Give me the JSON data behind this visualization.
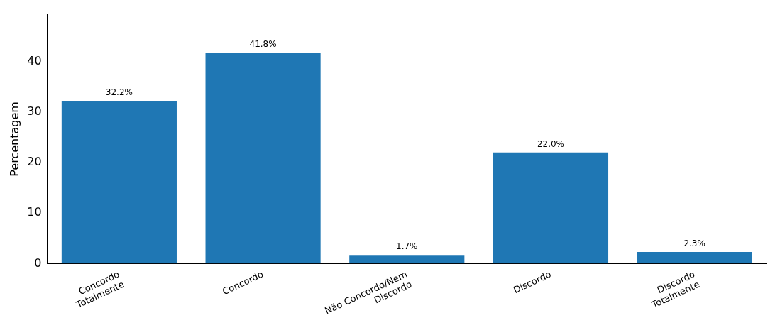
{
  "chart_data": {
    "type": "bar",
    "ylabel": "Percentagem",
    "categories": [
      "Concordo\nTotalmente",
      "Concordo",
      "Não Concordo/Nem\nDiscordo",
      "Discordo",
      "Discordo\nTotalmente"
    ],
    "values": [
      32.2,
      41.8,
      1.7,
      22.0,
      2.3
    ],
    "value_labels": [
      "32.2%",
      "41.8%",
      "1.7%",
      "22.0%",
      "2.3%"
    ],
    "color": "#1f77b4",
    "ylim": [
      0,
      49.3
    ],
    "yticks": [
      0,
      10,
      20,
      30,
      40
    ],
    "grid": false,
    "legend": false
  }
}
